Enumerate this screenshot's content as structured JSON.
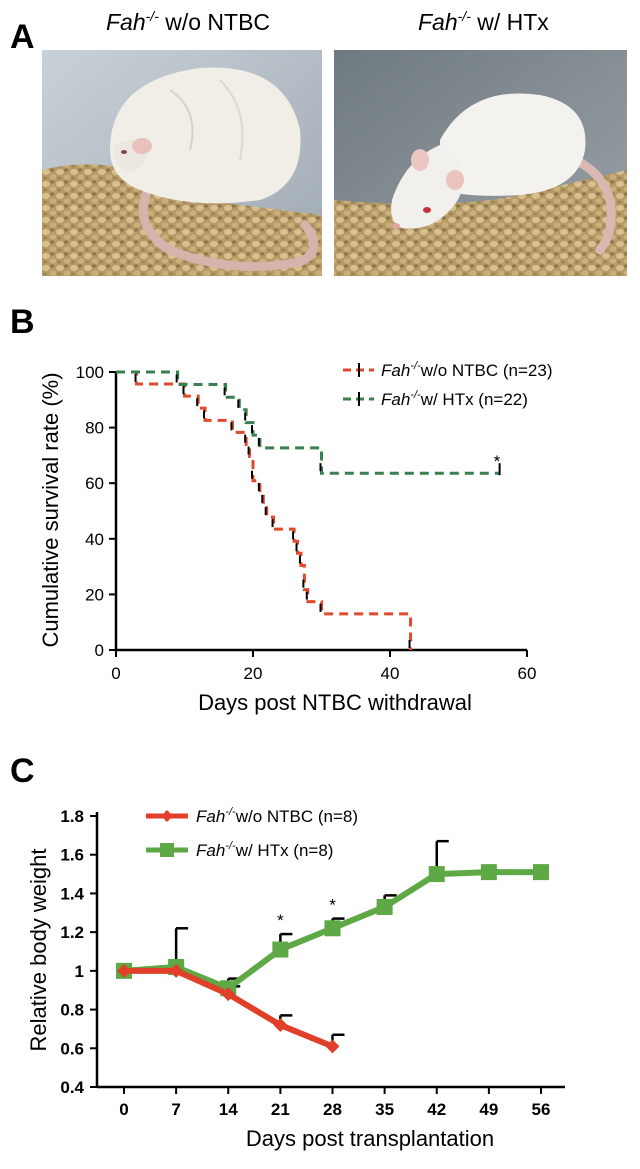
{
  "panels": {
    "A": {
      "letter": "A",
      "photos": [
        {
          "caption_italic": "Fah",
          "caption_sup": "-/-",
          "caption_rest": " w/o NTBC",
          "subject": "rat-lethargic"
        },
        {
          "caption_italic": "Fah",
          "caption_sup": "-/-",
          "caption_rest": " w/ HTx",
          "subject": "rat-healthy"
        }
      ]
    },
    "B": {
      "letter": "B"
    },
    "C": {
      "letter": "C"
    }
  },
  "chart_data": [
    {
      "panel": "B",
      "type": "line",
      "style": "kaplan-meier",
      "xlabel": "Days post NTBC withdrawal",
      "ylabel": "Cumulative survival rate (%)",
      "xlim": [
        0,
        60
      ],
      "ylim": [
        0,
        100
      ],
      "xticks": [
        "0",
        "20",
        "40",
        "60"
      ],
      "yticks": [
        "0",
        "20",
        "40",
        "60",
        "80",
        "100"
      ],
      "legend_position": "top-right",
      "significance": "*",
      "series": [
        {
          "name_italic": "Fah",
          "name_sup": "-/-",
          "name_rest": "w/o NTBC (n=23)",
          "color": "#e0492b",
          "steps": [
            [
              0,
              100
            ],
            [
              3,
              95.7
            ],
            [
              10,
              91.3
            ],
            [
              12,
              87.0
            ],
            [
              13,
              82.6
            ],
            [
              17,
              78.3
            ],
            [
              19,
              73.9
            ],
            [
              19.5,
              69.6
            ],
            [
              20,
              60.9
            ],
            [
              21,
              56.5
            ],
            [
              21.5,
              52.2
            ],
            [
              22,
              47.8
            ],
            [
              23,
              43.5
            ],
            [
              26,
              39.1
            ],
            [
              26.5,
              34.8
            ],
            [
              27,
              30.4
            ],
            [
              27.5,
              21.7
            ],
            [
              28,
              17.4
            ],
            [
              30,
              13.0
            ],
            [
              43,
              0
            ]
          ],
          "end_x": 43
        },
        {
          "name_italic": "Fah",
          "name_sup": "-/-",
          "name_rest": "w/ HTx (n=22)",
          "color": "#3a7f4f",
          "steps": [
            [
              0,
              100
            ],
            [
              9,
              95.5
            ],
            [
              16,
              90.9
            ],
            [
              18,
              86.4
            ],
            [
              19,
              81.8
            ],
            [
              20,
              77.3
            ],
            [
              21,
              72.7
            ],
            [
              30,
              63.6
            ]
          ],
          "end_x": 56
        }
      ]
    },
    {
      "panel": "C",
      "type": "line",
      "xlabel": "Days post transplantation",
      "ylabel": "Relative body weight",
      "xlim": [
        0,
        56
      ],
      "ylim": [
        0.4,
        1.8
      ],
      "x": [
        0,
        7,
        14,
        21,
        28,
        35,
        42,
        49,
        56
      ],
      "xticks": [
        "0",
        "7",
        "14",
        "21",
        "28",
        "35",
        "42",
        "49",
        "56"
      ],
      "yticks": [
        "0.4",
        "0.6",
        "0.8",
        "1",
        "1.2",
        "1.4",
        "1.6",
        "1.8"
      ],
      "legend_position": "top-left",
      "significance": [
        {
          "x": 21,
          "label": "*"
        },
        {
          "x": 28,
          "label": "*"
        }
      ],
      "series": [
        {
          "name_italic": "Fah",
          "name_sup": "-/-",
          "name_rest": "w/o NTBC (n=8)",
          "color": "#e0402a",
          "x": [
            0,
            7,
            14,
            21,
            28
          ],
          "values": [
            1.0,
            1.0,
            0.88,
            0.72,
            0.61
          ],
          "errors": [
            0,
            0,
            0.04,
            0.05,
            0.06
          ]
        },
        {
          "name_italic": "Fah",
          "name_sup": "-/-",
          "name_rest": "w/ HTx (n=8)",
          "color": "#5ea845",
          "x": [
            0,
            7,
            14,
            21,
            28,
            35,
            42,
            49,
            56
          ],
          "values": [
            1.0,
            1.02,
            0.91,
            1.11,
            1.22,
            1.33,
            1.5,
            1.51,
            1.51
          ],
          "errors": [
            0,
            0.2,
            0.05,
            0.08,
            0.05,
            0.06,
            0.17,
            0,
            0
          ]
        }
      ]
    }
  ]
}
